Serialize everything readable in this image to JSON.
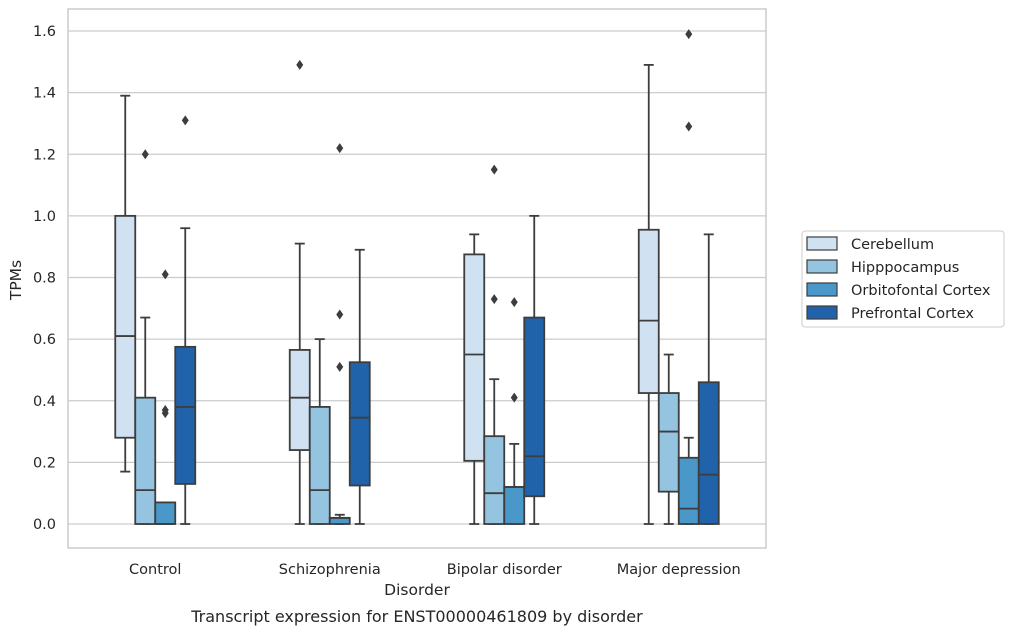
{
  "chart_data": {
    "type": "boxplot",
    "xlabel": "Disorder",
    "ylabel": "TPMs",
    "caption": "Transcript expression for ENST00000461809 by disorder",
    "ylim": [
      -0.08,
      1.67
    ],
    "yticks": [
      "0.0",
      "0.2",
      "0.4",
      "0.6",
      "0.8",
      "1.0",
      "1.2",
      "1.4",
      "1.6"
    ],
    "grid": "horizontal",
    "legend_position": "right",
    "categories": [
      "Control",
      "Schizophrenia",
      "Bipolar disorder",
      "Major depression"
    ],
    "series": [
      {
        "name": "Cerebellum",
        "color": "#d0e1f2",
        "boxes": [
          {
            "whislo": 0.17,
            "q1": 0.28,
            "med": 0.61,
            "q3": 1.0,
            "whishi": 1.39,
            "fliers": []
          },
          {
            "whislo": 0.0,
            "q1": 0.24,
            "med": 0.41,
            "q3": 0.565,
            "whishi": 0.91,
            "fliers": [
              1.49
            ]
          },
          {
            "whislo": 0.0,
            "q1": 0.205,
            "med": 0.55,
            "q3": 0.875,
            "whishi": 0.94,
            "fliers": []
          },
          {
            "whislo": 0.0,
            "q1": 0.425,
            "med": 0.66,
            "q3": 0.955,
            "whishi": 1.49,
            "fliers": []
          }
        ]
      },
      {
        "name": "Hipppocampus",
        "color": "#94c4df",
        "boxes": [
          {
            "whislo": 0.0,
            "q1": 0.0,
            "med": 0.11,
            "q3": 0.41,
            "whishi": 0.67,
            "fliers": [
              1.2
            ]
          },
          {
            "whislo": 0.0,
            "q1": 0.0,
            "med": 0.11,
            "q3": 0.38,
            "whishi": 0.6,
            "fliers": []
          },
          {
            "whislo": 0.0,
            "q1": 0.0,
            "med": 0.1,
            "q3": 0.285,
            "whishi": 0.47,
            "fliers": [
              0.73,
              1.15
            ]
          },
          {
            "whislo": 0.0,
            "q1": 0.105,
            "med": 0.3,
            "q3": 0.425,
            "whishi": 0.55,
            "fliers": []
          }
        ]
      },
      {
        "name": "Orbitofontal Cortex",
        "color": "#4a98c9",
        "boxes": [
          {
            "whislo": 0.0,
            "q1": 0.0,
            "med": 0.0,
            "q3": 0.07,
            "whishi": 0.07,
            "fliers": [
              0.36,
              0.37,
              0.81
            ]
          },
          {
            "whislo": 0.0,
            "q1": 0.0,
            "med": 0.02,
            "q3": 0.02,
            "whishi": 0.03,
            "fliers": [
              0.51,
              0.68,
              1.22
            ]
          },
          {
            "whislo": 0.0,
            "q1": 0.0,
            "med": 0.12,
            "q3": 0.12,
            "whishi": 0.26,
            "fliers": [
              0.41,
              0.72
            ]
          },
          {
            "whislo": 0.0,
            "q1": 0.0,
            "med": 0.05,
            "q3": 0.215,
            "whishi": 0.28,
            "fliers": [
              1.29,
              1.59
            ]
          }
        ]
      },
      {
        "name": "Prefrontal Cortex",
        "color": "#2163aa",
        "boxes": [
          {
            "whislo": 0.0,
            "q1": 0.13,
            "med": 0.38,
            "q3": 0.575,
            "whishi": 0.96,
            "fliers": [
              1.31
            ]
          },
          {
            "whislo": 0.0,
            "q1": 0.125,
            "med": 0.345,
            "q3": 0.525,
            "whishi": 0.89,
            "fliers": []
          },
          {
            "whislo": 0.0,
            "q1": 0.09,
            "med": 0.22,
            "q3": 0.67,
            "whishi": 1.0,
            "fliers": []
          },
          {
            "whislo": 0.0,
            "q1": 0.0,
            "med": 0.16,
            "q3": 0.46,
            "whishi": 0.94,
            "fliers": []
          }
        ]
      }
    ]
  }
}
